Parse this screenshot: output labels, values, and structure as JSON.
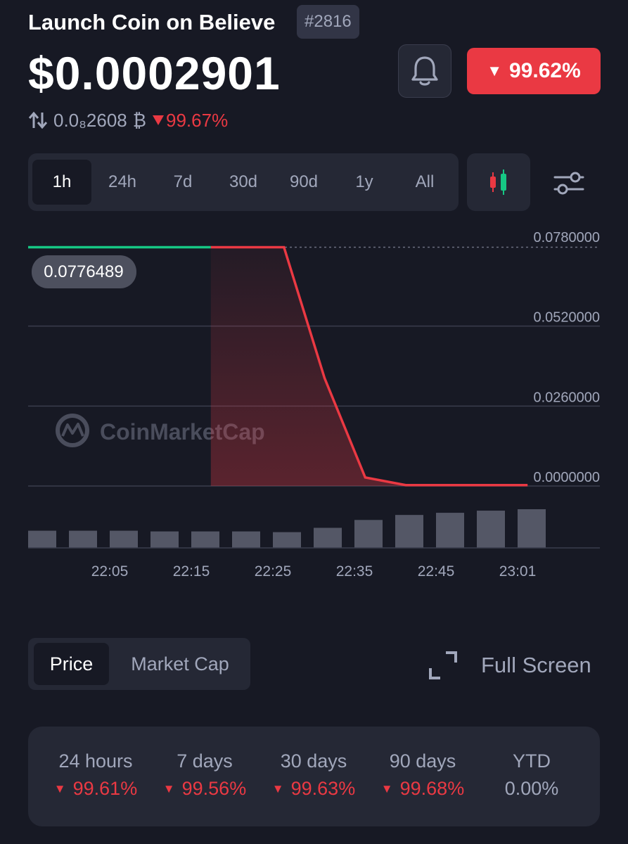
{
  "header": {
    "coin_name": "Launch Coin on Believe",
    "rank": "#2816",
    "price": "$0.0002901",
    "btc_price": "0.0₈2608",
    "btc_symbol": "₿",
    "btc_change": "99.67%",
    "change_24h": "99.62%"
  },
  "icons": {
    "bell": "bell-icon",
    "swap": "swap-arrows-icon",
    "candles": "candlestick-icon",
    "filter": "sliders-icon",
    "fullscreen": "expand-icon",
    "down": "triangle-down-icon"
  },
  "colors": {
    "negative": "#ea3943",
    "positive": "#16c784",
    "muted": "#a1a7bb"
  },
  "range_tabs": [
    "1h",
    "24h",
    "7d",
    "30d",
    "90d",
    "1y",
    "All"
  ],
  "active_range": "1h",
  "chart_data": {
    "type": "area",
    "watermark": "CoinMarketCap",
    "current_label": "0.0776489",
    "y_ticks": [
      "0.0780000",
      "0.0520000",
      "0.0260000",
      "0.0000000"
    ],
    "ylim": [
      0,
      0.078
    ],
    "x_ticks": [
      "22:05",
      "22:15",
      "22:25",
      "22:35",
      "22:45",
      "23:01"
    ],
    "xlim": [
      0,
      62
    ],
    "price_points": [
      [
        0,
        0.0776489
      ],
      [
        22.5,
        0.0776489
      ],
      [
        31.5,
        0.0776489
      ],
      [
        36.5,
        0.0351
      ],
      [
        41.5,
        0.0028
      ],
      [
        46.5,
        0.0002901
      ],
      [
        55.5,
        0.0002901
      ],
      [
        61.5,
        0.0002901
      ]
    ],
    "positive_until": 22.5,
    "volume": {
      "times": [
        0,
        5,
        10,
        15,
        20,
        25,
        30,
        35,
        40,
        45,
        50,
        55,
        60
      ],
      "values": [
        24,
        24,
        24,
        23,
        23,
        23,
        22,
        28,
        39,
        46,
        49,
        52,
        54
      ]
    }
  },
  "view_toggle": {
    "price": "Price",
    "market_cap": "Market Cap",
    "active": "Price"
  },
  "fullscreen_label": "Full Screen",
  "stats": [
    {
      "label": "24 hours",
      "value": "99.61%",
      "direction": "down"
    },
    {
      "label": "7 days",
      "value": "99.56%",
      "direction": "down"
    },
    {
      "label": "30 days",
      "value": "99.63%",
      "direction": "down"
    },
    {
      "label": "90 days",
      "value": "99.68%",
      "direction": "down"
    },
    {
      "label": "YTD",
      "value": "0.00%",
      "direction": "none"
    }
  ]
}
